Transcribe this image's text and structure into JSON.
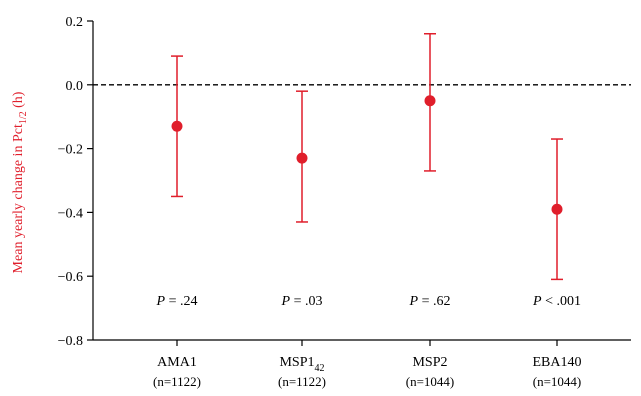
{
  "chart_data": {
    "type": "scatter",
    "ylabel": "Mean yearly change in Pct",
    "ylabel_subscript": "1/2",
    "ylabel_suffix": " (h)",
    "ylim": [
      -0.8,
      0.2
    ],
    "yticks": [
      0.2,
      0.0,
      -0.2,
      -0.4,
      -0.6,
      -0.8
    ],
    "ytick_labels": [
      "0.2",
      "0.0",
      "−0.2",
      "−0.4",
      "−0.6",
      "−0.8"
    ],
    "reference_line": 0.0,
    "grid": false,
    "color": "#e01e2b",
    "categories": [
      {
        "label": "AMA1",
        "label_sub": "",
        "n": "(n=1122)",
        "mean": -0.13,
        "lower": -0.35,
        "upper": 0.09,
        "p_prefix": "P",
        "p_rest": " = .24"
      },
      {
        "label": "MSP1",
        "label_sub": "42",
        "n": "(n=1122)",
        "mean": -0.23,
        "lower": -0.43,
        "upper": -0.02,
        "p_prefix": "P",
        "p_rest": " = .03"
      },
      {
        "label": "MSP2",
        "label_sub": "",
        "n": "(n=1044)",
        "mean": -0.05,
        "lower": -0.27,
        "upper": 0.16,
        "p_prefix": "P",
        "p_rest": " = .62"
      },
      {
        "label": "EBA140",
        "label_sub": "",
        "n": "(n=1044)",
        "mean": -0.39,
        "lower": -0.61,
        "upper": -0.17,
        "p_prefix": "P",
        "p_rest": " < .001"
      }
    ],
    "p_value_y": -0.675
  }
}
